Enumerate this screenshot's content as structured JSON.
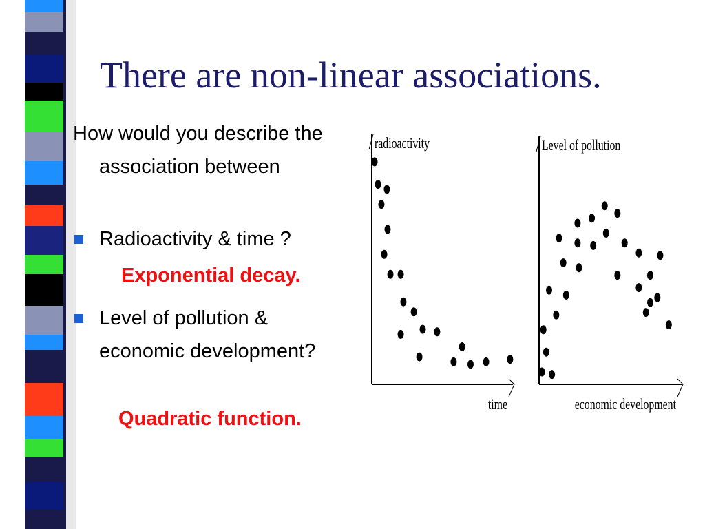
{
  "title": "There are non-linear associations.",
  "intro": "How would you describe the association between",
  "bullets": [
    {
      "text": "Radioactivity & time ?",
      "answer": "Exponential decay."
    },
    {
      "text": "Level of pollution & economic development?",
      "answer": "Quadratic function."
    }
  ],
  "chart_data": [
    {
      "type": "scatter",
      "y_label": "radioactivity",
      "x_label": "time",
      "color": "#000000",
      "xlim": [
        0,
        100
      ],
      "ylim": [
        0,
        100
      ],
      "x": [
        2,
        4.4,
        10.7,
        6.8,
        11.2,
        8.8,
        13.2,
        20.5,
        22.4,
        29.8,
        20.5,
        36.1,
        46.3,
        33.7,
        58,
        64,
        70,
        81,
        98
      ],
      "values": [
        89,
        80,
        78,
        72,
        62,
        52,
        44,
        44,
        33,
        29,
        20,
        22,
        21,
        11,
        9,
        15,
        8,
        9,
        10
      ]
    },
    {
      "type": "scatter",
      "y_label": "Level of pollution",
      "x_label": "economic development",
      "color": "#000000",
      "xlim": [
        0,
        100
      ],
      "ylim": [
        0,
        100
      ],
      "x": [
        2,
        9,
        5,
        3,
        7,
        12,
        19,
        17,
        14,
        27,
        27,
        28,
        37,
        38,
        46,
        47,
        55,
        60,
        55,
        70,
        70,
        78,
        75,
        78,
        83,
        85,
        91
      ],
      "values": [
        5,
        4,
        13,
        22,
        38,
        28,
        36,
        49,
        59,
        65,
        57,
        47,
        67,
        56,
        72,
        61,
        69,
        57,
        44,
        53,
        39,
        44,
        29,
        33,
        35,
        52,
        24
      ]
    }
  ]
}
